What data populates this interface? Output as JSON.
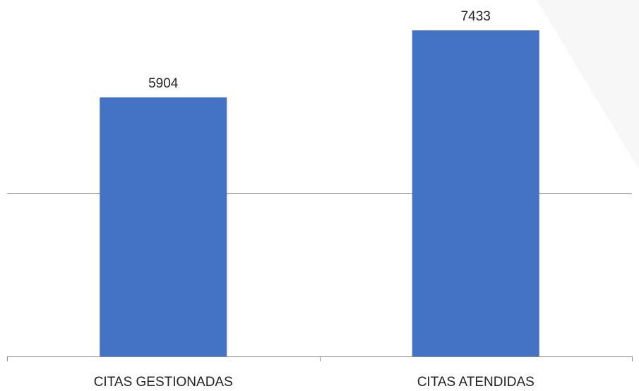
{
  "chart_data": {
    "type": "bar",
    "title": "",
    "xlabel": "",
    "ylabel": "",
    "categories": [
      "CITAS GESTIONADAS",
      "CITAS ATENDIDAS"
    ],
    "values": [
      5904,
      7433
    ],
    "data_labels": [
      "5904",
      "7433"
    ],
    "ylim": [
      0,
      7433
    ],
    "gridlines": [
      3717
    ],
    "grid": true,
    "legend": "none",
    "y_axis_labels_shown": false,
    "colors": {
      "bar": "#4472c4",
      "axis": "#8c8c8c",
      "text": "#222222",
      "background": "#ffffff",
      "backdrop": "#f7f7f8"
    }
  }
}
